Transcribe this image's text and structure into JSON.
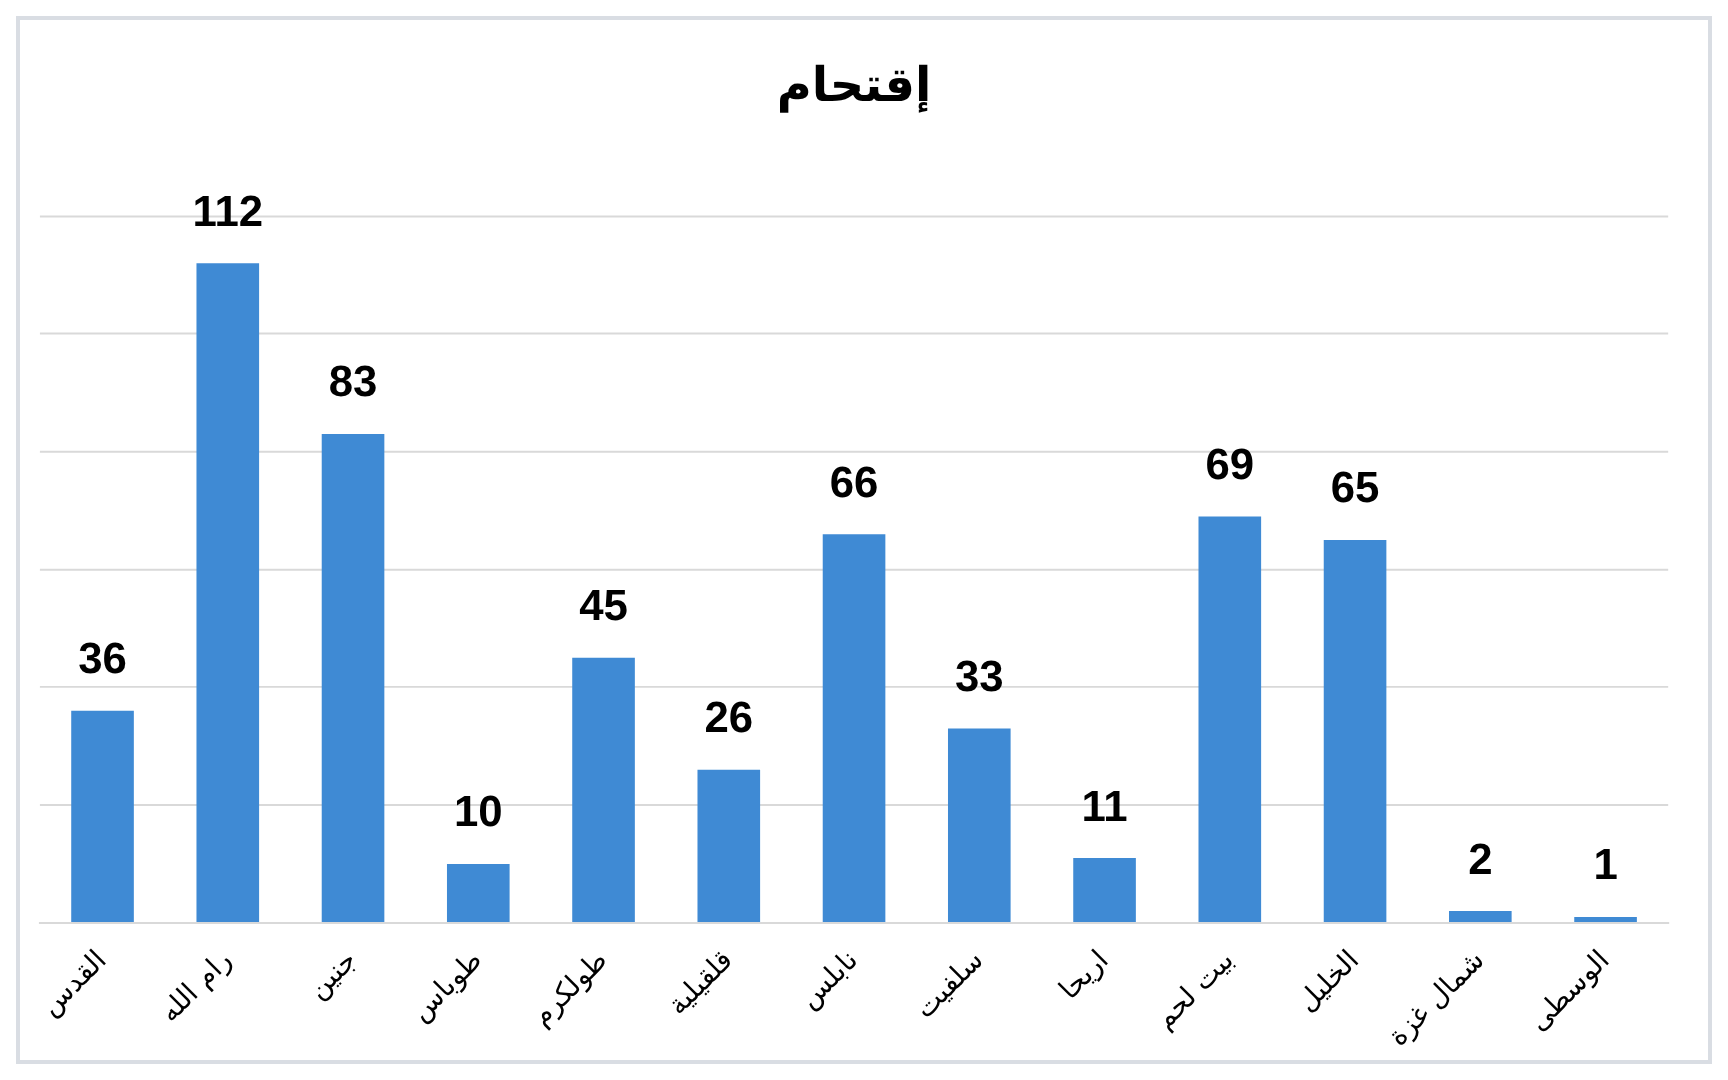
{
  "chart_data": {
    "type": "bar",
    "title": "إقتحام",
    "categories": [
      "القدس",
      "رام الله",
      "جنين",
      "طوباس",
      "طولكرم",
      "قلقيلية",
      "نابلس",
      "سلفيت",
      "اريحا",
      "بيت لحم",
      "الخليل",
      "شمال غزة",
      "الوسطى"
    ],
    "values": [
      36,
      112,
      83,
      10,
      45,
      26,
      66,
      33,
      11,
      69,
      65,
      2,
      1
    ],
    "color": "#3f8ad4",
    "ylim": [
      0,
      120
    ],
    "yticks": [
      {
        "value": 0,
        "label": null
      },
      {
        "value": 20,
        "label": null
      },
      {
        "value": 40,
        "label": null
      },
      {
        "value": 60,
        "label": null
      },
      {
        "value": 80,
        "label": null
      },
      {
        "value": 100,
        "label": null
      },
      {
        "value": 120,
        "label": null
      }
    ],
    "tick_labels": "x",
    "grid": "y",
    "data_labels": true,
    "legend": false
  }
}
